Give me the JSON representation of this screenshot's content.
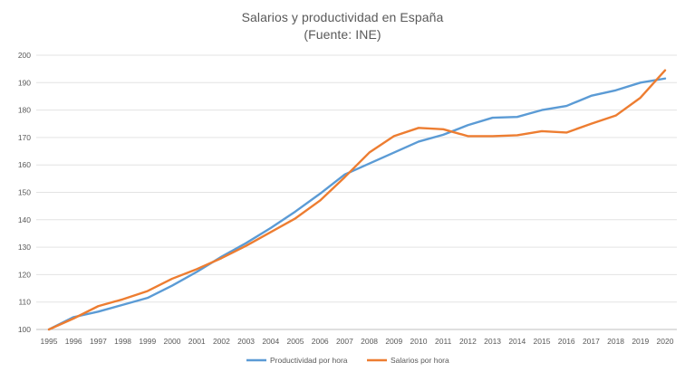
{
  "chart_data": {
    "type": "line",
    "title": "Salarios y productividad en España",
    "subtitle": "(Fuente: INE)",
    "x": [
      "1995",
      "1996",
      "1997",
      "1998",
      "1999",
      "2000",
      "2001",
      "2002",
      "2003",
      "2004",
      "2005",
      "2006",
      "2007",
      "2008",
      "2009",
      "2010",
      "2011",
      "2012",
      "2013",
      "2014",
      "2015",
      "2016",
      "2017",
      "2018",
      "2019",
      "2020"
    ],
    "ylim": [
      100,
      200
    ],
    "yticks": [
      100,
      110,
      120,
      130,
      140,
      150,
      160,
      170,
      180,
      190,
      200
    ],
    "grid": true,
    "legend_position": "bottom",
    "series": [
      {
        "name": "Productividad por hora",
        "color": "#5b9bd5",
        "values": [
          100,
          104.5,
          106.5,
          109,
          111.5,
          116,
          121,
          126.5,
          131.5,
          137,
          143,
          149.5,
          156.5,
          160.5,
          164.5,
          168.5,
          171,
          174.5,
          177.2,
          177.5,
          180,
          181.5,
          185.2,
          187.2,
          190,
          191.5
        ]
      },
      {
        "name": "Salarios por hora",
        "color": "#ed7d31",
        "values": [
          100,
          104,
          108.5,
          111,
          114,
          118.5,
          122,
          126,
          130.5,
          135.5,
          140.5,
          147,
          155.5,
          164.5,
          170.5,
          173.5,
          173,
          170.5,
          170.5,
          170.8,
          172.3,
          171.8,
          175,
          178,
          184.5,
          194.5
        ]
      }
    ]
  }
}
